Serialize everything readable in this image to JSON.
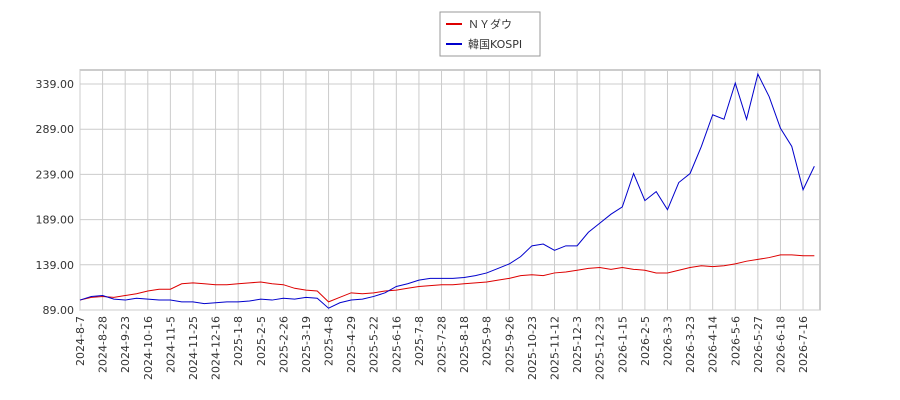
{
  "chart_data": {
    "type": "line",
    "categories": [
      "2024-8-7",
      null,
      "2024-8-28",
      null,
      "2024-9-23",
      null,
      "2024-10-16",
      null,
      "2024-11-5",
      null,
      "2024-11-25",
      null,
      "2024-12-16",
      null,
      "2025-1-8",
      null,
      "2025-2-5",
      null,
      "2025-2-26",
      null,
      "2025-3-19",
      null,
      "2025-4-8",
      null,
      "2025-4-29",
      null,
      "2025-5-22",
      null,
      "2025-6-16",
      null,
      "2025-7-8",
      null,
      "2025-7-28",
      null,
      "2025-8-18",
      null,
      "2025-9-8",
      null,
      "2025-9-26",
      null,
      "2025-10-23",
      null,
      "2025-11-12",
      null,
      "2025-12-3",
      null,
      "2025-12-23",
      null,
      "2026-1-15",
      null,
      "2026-2-5",
      null,
      "2026-3-3",
      null,
      "2026-3-23",
      null,
      "2026-4-14",
      null,
      "2026-5-6",
      null,
      "2026-5-27",
      null,
      "2026-6-18",
      null,
      "2026-7-16",
      null
    ],
    "series": [
      {
        "name": "ＮＹダウ",
        "color": "#dd0000",
        "values": [
          100,
          103,
          104,
          103,
          105,
          107,
          110,
          112,
          112,
          118,
          119,
          118,
          117,
          117,
          118,
          119,
          120,
          118,
          117,
          113,
          111,
          110,
          98,
          103,
          108,
          107,
          108,
          110,
          111,
          113,
          115,
          116,
          117,
          117,
          118,
          119,
          120,
          122,
          124,
          127,
          128,
          127,
          130,
          131,
          133,
          135,
          136,
          134,
          136,
          134,
          133,
          130,
          130,
          133,
          136,
          138,
          137,
          138,
          140,
          143,
          145,
          147,
          150,
          150,
          149,
          149
        ]
      },
      {
        "name": "韓国KOSPI",
        "color": "#0000cc",
        "values": [
          100,
          104,
          105,
          101,
          100,
          102,
          101,
          100,
          100,
          98,
          98,
          96,
          97,
          98,
          98,
          99,
          101,
          100,
          102,
          101,
          103,
          102,
          91,
          97,
          100,
          101,
          104,
          108,
          115,
          118,
          122,
          124,
          124,
          124,
          125,
          127,
          130,
          135,
          140,
          148,
          160,
          162,
          155,
          160,
          160,
          175,
          185,
          195,
          203,
          240,
          210,
          220,
          200,
          230,
          240,
          270,
          305,
          300,
          340,
          300,
          350,
          325,
          290,
          270,
          222,
          248
        ]
      }
    ],
    "ylim": [
      89,
      354.5
    ],
    "yticks": [
      {
        "value": 89,
        "label": "89.00"
      },
      {
        "value": 139,
        "label": "139.00"
      },
      {
        "value": 189,
        "label": "189.00"
      },
      {
        "value": 239,
        "label": "239.00"
      },
      {
        "value": 289,
        "label": "289.00"
      },
      {
        "value": 339,
        "label": "339.00"
      }
    ],
    "grid": true,
    "legend": "top"
  }
}
